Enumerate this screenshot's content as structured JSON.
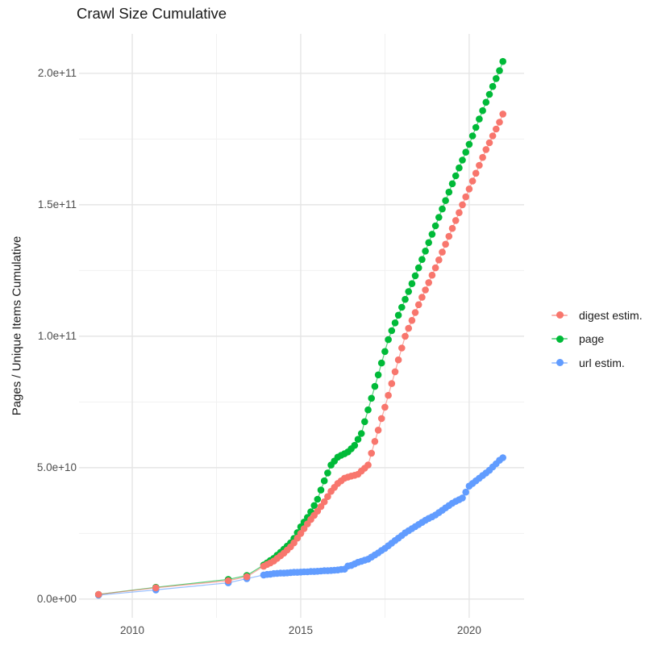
{
  "title": "Crawl Size Cumulative",
  "colors": {
    "background": "#ffffff",
    "grid_major": "#e5e5e5",
    "grid_minor": "#f1f1f1",
    "tick_text": "#4d4d4d",
    "text": "#1a1a1a",
    "digest": "#F8766D",
    "page": "#00BA38",
    "url": "#619CFF"
  },
  "chart_data": {
    "type": "scatter",
    "title": "Crawl Size Cumulative",
    "xlabel": "",
    "ylabel": "Pages / Unique Items Cumulative",
    "grid": true,
    "legend_position": "right",
    "value_unit": "items, values stored in billions (1e9)",
    "xlim": [
      2008.42,
      2021.63
    ],
    "ylim_e9": [
      -7.1,
      215
    ],
    "x_ticks": [
      {
        "value": 2010,
        "label": "2010"
      },
      {
        "value": 2015,
        "label": "2015"
      },
      {
        "value": 2020,
        "label": "2020"
      }
    ],
    "y_ticks": [
      {
        "value_e9": 0,
        "label": "0.0e+00"
      },
      {
        "value_e9": 50,
        "label": "5.0e+10"
      },
      {
        "value_e9": 100,
        "label": "1.0e+11"
      },
      {
        "value_e9": 150,
        "label": "1.5e+11"
      },
      {
        "value_e9": 200,
        "label": "2.0e+11"
      }
    ],
    "x_minor_gridlines": [
      2012.5,
      2017.5
    ],
    "y_minor_gridlines_e9": [
      25,
      75,
      125,
      175
    ],
    "legend": [
      {
        "label": "digest estim.",
        "color": "#F8766D"
      },
      {
        "label": "page",
        "color": "#00BA38"
      },
      {
        "label": "url estim.",
        "color": "#619CFF"
      }
    ],
    "series": [
      {
        "name": "digest estim.",
        "color": "#F8766D",
        "points": [
          [
            2009,
            1.8
          ],
          [
            2010.7,
            4.3
          ],
          [
            2012.85,
            7
          ],
          [
            2013.4,
            8.5
          ],
          [
            2013.9,
            12.5
          ],
          [
            2014.0,
            13.2
          ],
          [
            2014.1,
            13.8
          ],
          [
            2014.2,
            14.5
          ],
          [
            2014.3,
            15.5
          ],
          [
            2014.4,
            16.5
          ],
          [
            2014.5,
            17.5
          ],
          [
            2014.6,
            18.7
          ],
          [
            2014.7,
            19.9
          ],
          [
            2014.8,
            21.4
          ],
          [
            2014.9,
            23.2
          ],
          [
            2015.0,
            25
          ],
          [
            2015.1,
            26.8
          ],
          [
            2015.2,
            28.6
          ],
          [
            2015.3,
            30.3
          ],
          [
            2015.4,
            31.9
          ],
          [
            2015.5,
            33.5
          ],
          [
            2015.6,
            35.2
          ],
          [
            2015.7,
            37
          ],
          [
            2015.8,
            39
          ],
          [
            2015.9,
            41
          ],
          [
            2016.0,
            42.5
          ],
          [
            2016.1,
            44
          ],
          [
            2016.2,
            45
          ],
          [
            2016.3,
            46
          ],
          [
            2016.4,
            46.4
          ],
          [
            2016.5,
            46.8
          ],
          [
            2016.6,
            47.1
          ],
          [
            2016.7,
            47.5
          ],
          [
            2016.8,
            48.7
          ],
          [
            2016.9,
            49.8
          ],
          [
            2017.0,
            51
          ],
          [
            2017.1,
            55.5
          ],
          [
            2017.2,
            60
          ],
          [
            2017.3,
            64.3
          ],
          [
            2017.4,
            68.7
          ],
          [
            2017.5,
            73
          ],
          [
            2017.6,
            77.5
          ],
          [
            2017.7,
            82
          ],
          [
            2017.8,
            86.5
          ],
          [
            2017.9,
            91
          ],
          [
            2018.0,
            95.5
          ],
          [
            2018.1,
            100
          ],
          [
            2018.2,
            103
          ],
          [
            2018.3,
            106
          ],
          [
            2018.4,
            109
          ],
          [
            2018.5,
            112
          ],
          [
            2018.6,
            114.8
          ],
          [
            2018.7,
            117.6
          ],
          [
            2018.8,
            120.4
          ],
          [
            2018.9,
            123.2
          ],
          [
            2019.0,
            126
          ],
          [
            2019.1,
            129
          ],
          [
            2019.2,
            132
          ],
          [
            2019.3,
            135
          ],
          [
            2019.4,
            138
          ],
          [
            2019.5,
            141
          ],
          [
            2019.6,
            144
          ],
          [
            2019.7,
            147
          ],
          [
            2019.8,
            150
          ],
          [
            2019.9,
            153
          ],
          [
            2020.0,
            156
          ],
          [
            2020.1,
            159
          ],
          [
            2020.2,
            162
          ],
          [
            2020.3,
            165
          ],
          [
            2020.4,
            168
          ],
          [
            2020.5,
            171
          ],
          [
            2020.6,
            173.6
          ],
          [
            2020.7,
            176.2
          ],
          [
            2020.8,
            178.8
          ],
          [
            2020.9,
            181.4
          ],
          [
            2021.0,
            184.5
          ]
        ]
      },
      {
        "name": "page",
        "color": "#00BA38",
        "points": [
          [
            2009,
            1.8
          ],
          [
            2010.7,
            4.5
          ],
          [
            2012.85,
            7.5
          ],
          [
            2013.4,
            9
          ],
          [
            2013.9,
            13
          ],
          [
            2014.0,
            13.8
          ],
          [
            2014.1,
            14.7
          ],
          [
            2014.2,
            15.5
          ],
          [
            2014.3,
            16.7
          ],
          [
            2014.4,
            17.8
          ],
          [
            2014.5,
            19
          ],
          [
            2014.6,
            20.2
          ],
          [
            2014.7,
            21.4
          ],
          [
            2014.8,
            23.1
          ],
          [
            2014.9,
            25.3
          ],
          [
            2015.0,
            27.5
          ],
          [
            2015.1,
            29.3
          ],
          [
            2015.2,
            31.1
          ],
          [
            2015.3,
            33.2
          ],
          [
            2015.4,
            35.6
          ],
          [
            2015.5,
            38
          ],
          [
            2015.6,
            41.5
          ],
          [
            2015.7,
            45
          ],
          [
            2015.8,
            48
          ],
          [
            2015.9,
            51
          ],
          [
            2016.0,
            52.5
          ],
          [
            2016.1,
            54
          ],
          [
            2016.2,
            54.7
          ],
          [
            2016.3,
            55.3
          ],
          [
            2016.4,
            56
          ],
          [
            2016.5,
            57.2
          ],
          [
            2016.6,
            58.5
          ],
          [
            2016.7,
            60.8
          ],
          [
            2016.8,
            63
          ],
          [
            2016.9,
            67.5
          ],
          [
            2017.0,
            72
          ],
          [
            2017.1,
            76.4
          ],
          [
            2017.2,
            80.9
          ],
          [
            2017.3,
            85.3
          ],
          [
            2017.4,
            89.8
          ],
          [
            2017.5,
            94.2
          ],
          [
            2017.6,
            98.7
          ],
          [
            2017.7,
            102.1
          ],
          [
            2017.8,
            105.1
          ],
          [
            2017.9,
            108
          ],
          [
            2018.0,
            111
          ],
          [
            2018.1,
            114
          ],
          [
            2018.2,
            117
          ],
          [
            2018.3,
            120
          ],
          [
            2018.4,
            123
          ],
          [
            2018.5,
            126
          ],
          [
            2018.6,
            129.2
          ],
          [
            2018.7,
            132.4
          ],
          [
            2018.8,
            135.6
          ],
          [
            2018.9,
            138.8
          ],
          [
            2019.0,
            142
          ],
          [
            2019.1,
            145.2
          ],
          [
            2019.2,
            148.4
          ],
          [
            2019.3,
            151.6
          ],
          [
            2019.4,
            154.8
          ],
          [
            2019.5,
            158
          ],
          [
            2019.6,
            161
          ],
          [
            2019.7,
            164
          ],
          [
            2019.8,
            167
          ],
          [
            2019.9,
            170
          ],
          [
            2020.0,
            173
          ],
          [
            2020.1,
            176.2
          ],
          [
            2020.2,
            179.4
          ],
          [
            2020.3,
            182.6
          ],
          [
            2020.4,
            185.8
          ],
          [
            2020.5,
            189
          ],
          [
            2020.6,
            192
          ],
          [
            2020.7,
            195
          ],
          [
            2020.8,
            198
          ],
          [
            2020.9,
            201
          ],
          [
            2021.0,
            204.5
          ]
        ]
      },
      {
        "name": "url estim.",
        "color": "#619CFF",
        "points": [
          [
            2009,
            1.5
          ],
          [
            2010.7,
            3.5
          ],
          [
            2012.85,
            6.2
          ],
          [
            2013.4,
            7.8
          ],
          [
            2013.9,
            9.2
          ],
          [
            2014.0,
            9.4
          ],
          [
            2014.1,
            9.5
          ],
          [
            2014.2,
            9.7
          ],
          [
            2014.3,
            9.8
          ],
          [
            2014.4,
            9.9
          ],
          [
            2014.5,
            9.9
          ],
          [
            2014.6,
            10.0
          ],
          [
            2014.7,
            10.1
          ],
          [
            2014.8,
            10.2
          ],
          [
            2014.9,
            10.2
          ],
          [
            2015.0,
            10.3
          ],
          [
            2015.1,
            10.4
          ],
          [
            2015.2,
            10.4
          ],
          [
            2015.3,
            10.5
          ],
          [
            2015.4,
            10.5
          ],
          [
            2015.5,
            10.6
          ],
          [
            2015.6,
            10.7
          ],
          [
            2015.7,
            10.8
          ],
          [
            2015.8,
            10.8
          ],
          [
            2015.9,
            10.9
          ],
          [
            2016.0,
            11
          ],
          [
            2016.1,
            11.1
          ],
          [
            2016.2,
            11.3
          ],
          [
            2016.3,
            11.4
          ],
          [
            2016.4,
            12.6
          ],
          [
            2016.5,
            12.8
          ],
          [
            2016.6,
            13.4
          ],
          [
            2016.7,
            14
          ],
          [
            2016.8,
            14.4
          ],
          [
            2016.9,
            14.8
          ],
          [
            2017.0,
            15.2
          ],
          [
            2017.1,
            16
          ],
          [
            2017.2,
            16.8
          ],
          [
            2017.3,
            17.6
          ],
          [
            2017.4,
            18.5
          ],
          [
            2017.5,
            19.3
          ],
          [
            2017.6,
            20.3
          ],
          [
            2017.7,
            21.3
          ],
          [
            2017.8,
            22.3
          ],
          [
            2017.9,
            23.2
          ],
          [
            2018.0,
            24.2
          ],
          [
            2018.1,
            25.2
          ],
          [
            2018.2,
            26
          ],
          [
            2018.3,
            26.8
          ],
          [
            2018.4,
            27.6
          ],
          [
            2018.5,
            28.4
          ],
          [
            2018.6,
            29.2
          ],
          [
            2018.7,
            30
          ],
          [
            2018.8,
            30.7
          ],
          [
            2018.9,
            31.3
          ],
          [
            2019.0,
            32
          ],
          [
            2019.1,
            32.9
          ],
          [
            2019.2,
            33.8
          ],
          [
            2019.3,
            34.7
          ],
          [
            2019.4,
            35.6
          ],
          [
            2019.5,
            36.5
          ],
          [
            2019.6,
            37.2
          ],
          [
            2019.7,
            37.8
          ],
          [
            2019.8,
            38.5
          ],
          [
            2019.9,
            40.7
          ],
          [
            2020.0,
            43
          ],
          [
            2020.1,
            44
          ],
          [
            2020.2,
            45
          ],
          [
            2020.3,
            46
          ],
          [
            2020.4,
            47
          ],
          [
            2020.5,
            48
          ],
          [
            2020.6,
            49
          ],
          [
            2020.7,
            50.3
          ],
          [
            2020.8,
            51.5
          ],
          [
            2020.9,
            52.8
          ],
          [
            2021.0,
            53.8
          ]
        ]
      }
    ]
  }
}
